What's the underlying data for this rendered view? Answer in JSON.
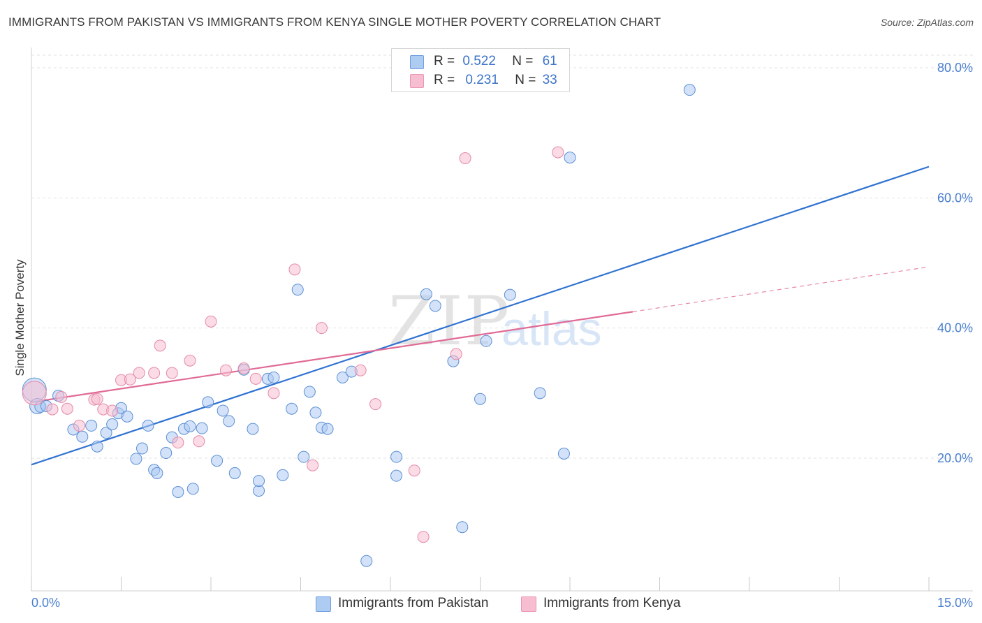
{
  "header": {
    "title": "IMMIGRANTS FROM PAKISTAN VS IMMIGRANTS FROM KENYA SINGLE MOTHER POVERTY CORRELATION CHART",
    "source": "Source: ZipAtlas.com"
  },
  "watermark": {
    "part1": "ZIP",
    "part2": "atlas"
  },
  "legend": {
    "rows": [
      {
        "r_label": "R =",
        "r_value": "0.522",
        "n_label": "N =",
        "n_value": "61",
        "color": "#aecbf2"
      },
      {
        "r_label": "R =",
        "r_value": "0.231",
        "n_label": "N =",
        "n_value": "33",
        "color": "#f7bdd0"
      }
    ]
  },
  "bottom_legend": {
    "items": [
      {
        "label": "Immigrants from Pakistan",
        "color": "#aecbf2"
      },
      {
        "label": "Immigrants from Kenya",
        "color": "#f7bdd0"
      }
    ]
  },
  "chart_data": {
    "type": "scatter",
    "title": "IMMIGRANTS FROM PAKISTAN VS IMMIGRANTS FROM KENYA SINGLE MOTHER POVERTY CORRELATION CHART",
    "xlabel": "",
    "ylabel": "Single Mother Poverty",
    "xlim": [
      0,
      15
    ],
    "ylim": [
      0,
      82
    ],
    "x_tick_labels": {
      "min": "0.0%",
      "max": "15.0%"
    },
    "y_ticks": [
      {
        "value": 20,
        "label": "20.0%"
      },
      {
        "value": 40,
        "label": "40.0%"
      },
      {
        "value": 60,
        "label": "60.0%"
      },
      {
        "value": 80,
        "label": "80.0%"
      }
    ],
    "grid": "horizontal dashed",
    "legend_position": "top-center",
    "series": [
      {
        "name": "Immigrants from Pakistan",
        "color": "#5b8fd6",
        "fill": "#aecbf2",
        "trend": {
          "x": [
            0,
            15
          ],
          "y": [
            19.0,
            64.8
          ],
          "color": "#2f72d1"
        },
        "points": [
          [
            0.05,
            30.5
          ],
          [
            0.1,
            28.0
          ],
          [
            0.15,
            27.9
          ],
          [
            0.25,
            28.0
          ],
          [
            0.45,
            29.6
          ],
          [
            0.7,
            24.4
          ],
          [
            0.85,
            23.3
          ],
          [
            1.0,
            25.0
          ],
          [
            1.1,
            21.8
          ],
          [
            1.25,
            23.9
          ],
          [
            1.35,
            25.2
          ],
          [
            1.45,
            26.9
          ],
          [
            1.5,
            27.7
          ],
          [
            1.6,
            26.4
          ],
          [
            1.75,
            19.9
          ],
          [
            1.85,
            21.5
          ],
          [
            1.95,
            25.0
          ],
          [
            2.05,
            18.2
          ],
          [
            2.1,
            17.7
          ],
          [
            2.25,
            20.8
          ],
          [
            2.35,
            23.2
          ],
          [
            2.45,
            14.8
          ],
          [
            2.55,
            24.5
          ],
          [
            2.65,
            24.9
          ],
          [
            2.7,
            15.3
          ],
          [
            2.85,
            24.6
          ],
          [
            2.95,
            28.6
          ],
          [
            3.1,
            19.6
          ],
          [
            3.2,
            27.3
          ],
          [
            3.3,
            25.7
          ],
          [
            3.4,
            17.7
          ],
          [
            3.55,
            33.6
          ],
          [
            3.7,
            24.5
          ],
          [
            3.8,
            15.0
          ],
          [
            3.95,
            32.2
          ],
          [
            4.05,
            32.4
          ],
          [
            4.2,
            17.4
          ],
          [
            4.35,
            27.6
          ],
          [
            4.45,
            45.9
          ],
          [
            4.55,
            20.2
          ],
          [
            4.65,
            30.2
          ],
          [
            4.75,
            27.0
          ],
          [
            4.85,
            24.7
          ],
          [
            4.95,
            24.5
          ],
          [
            5.2,
            32.4
          ],
          [
            5.35,
            33.3
          ],
          [
            5.6,
            4.2
          ],
          [
            6.1,
            20.2
          ],
          [
            6.1,
            17.3
          ],
          [
            6.6,
            45.2
          ],
          [
            6.75,
            43.4
          ],
          [
            7.05,
            34.9
          ],
          [
            7.2,
            9.4
          ],
          [
            7.5,
            29.1
          ],
          [
            7.6,
            38.0
          ],
          [
            8.0,
            45.1
          ],
          [
            8.5,
            30.0
          ],
          [
            8.9,
            20.7
          ],
          [
            9.0,
            66.2
          ],
          [
            11.0,
            76.6
          ],
          [
            3.8,
            16.5
          ]
        ]
      },
      {
        "name": "Immigrants from Kenya",
        "color": "#e48aa8",
        "fill": "#f7bdd0",
        "trend": {
          "x": [
            0,
            10.05
          ],
          "y": [
            28.6,
            42.5
          ],
          "color": "#e06a95"
        },
        "trend_extension": {
          "x": [
            10.05,
            15
          ],
          "y": [
            42.5,
            49.4
          ]
        },
        "points": [
          [
            0.05,
            30.0
          ],
          [
            0.35,
            27.5
          ],
          [
            0.5,
            29.4
          ],
          [
            0.6,
            27.6
          ],
          [
            0.8,
            25.0
          ],
          [
            1.05,
            29.0
          ],
          [
            1.1,
            29.1
          ],
          [
            1.2,
            27.5
          ],
          [
            1.35,
            27.3
          ],
          [
            1.5,
            32.0
          ],
          [
            1.65,
            32.1
          ],
          [
            1.8,
            33.1
          ],
          [
            2.05,
            33.1
          ],
          [
            2.15,
            37.3
          ],
          [
            2.35,
            33.1
          ],
          [
            2.45,
            22.4
          ],
          [
            2.65,
            35.0
          ],
          [
            2.8,
            22.6
          ],
          [
            3.0,
            41.0
          ],
          [
            3.25,
            33.5
          ],
          [
            3.55,
            33.8
          ],
          [
            3.75,
            32.2
          ],
          [
            4.05,
            30.0
          ],
          [
            4.4,
            49.0
          ],
          [
            4.7,
            18.9
          ],
          [
            4.85,
            40.0
          ],
          [
            5.5,
            33.5
          ],
          [
            5.75,
            28.3
          ],
          [
            6.4,
            18.1
          ],
          [
            6.55,
            7.9
          ],
          [
            7.1,
            36.0
          ],
          [
            7.25,
            66.1
          ],
          [
            8.8,
            67.0
          ]
        ]
      }
    ]
  }
}
